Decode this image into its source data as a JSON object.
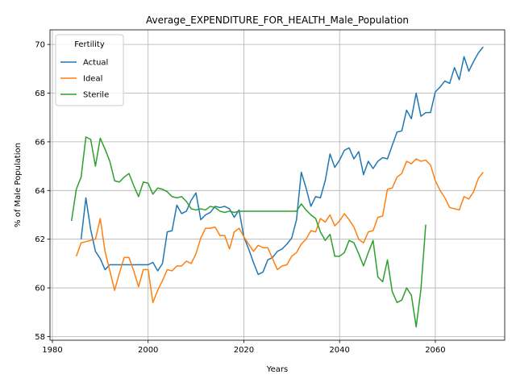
{
  "chart_data": {
    "type": "line",
    "title": "Average_EXPENDITURE_FOR_HEALTH_Male_Population",
    "xlabel": "Years",
    "ylabel": "% of Male Population",
    "xlim": [
      1979.5,
      2074.5
    ],
    "ylim": [
      57.85,
      70.6
    ],
    "xticks": [
      1980,
      2000,
      2020,
      2040,
      2060
    ],
    "yticks": [
      58,
      60,
      62,
      64,
      66,
      68,
      70
    ],
    "grid": true,
    "legend": {
      "title": "Fertility",
      "position": "top-left"
    },
    "colors": {
      "Actual": "#1f77b4",
      "Ideal": "#ff7f0e",
      "Sterile": "#2ca02c"
    },
    "series": [
      {
        "name": "Actual",
        "x": [
          1986,
          1987,
          1988,
          1989,
          1990,
          1991,
          1992,
          1993,
          1994,
          1995,
          1996,
          1997,
          1998,
          1999,
          2000,
          2001,
          2002,
          2003,
          2004,
          2005,
          2006,
          2007,
          2008,
          2009,
          2010,
          2011,
          2012,
          2013,
          2014,
          2015,
          2016,
          2017,
          2018,
          2019,
          2020,
          2021,
          2022,
          2023,
          2024,
          2025,
          2026,
          2027,
          2028,
          2029,
          2030,
          2031,
          2032,
          2033,
          2034,
          2035,
          2036,
          2037,
          2038,
          2039,
          2040,
          2041,
          2042,
          2043,
          2044,
          2045,
          2046,
          2047,
          2048,
          2049,
          2050,
          2051,
          2052,
          2053,
          2054,
          2055,
          2056,
          2057,
          2058,
          2059,
          2060,
          2061,
          2062,
          2063,
          2064,
          2065,
          2066,
          2067,
          2068,
          2069,
          2070
        ],
        "values": [
          62.0,
          63.7,
          62.4,
          61.5,
          61.2,
          60.75,
          60.95,
          60.95,
          60.95,
          60.95,
          60.95,
          60.95,
          60.95,
          60.95,
          60.95,
          61.05,
          60.7,
          61.0,
          62.3,
          62.35,
          63.4,
          63.05,
          63.15,
          63.6,
          63.9,
          62.8,
          63.0,
          63.1,
          63.35,
          63.3,
          63.35,
          63.25,
          62.9,
          63.2,
          62.1,
          61.6,
          61.05,
          60.55,
          60.65,
          61.15,
          61.25,
          61.5,
          61.6,
          61.8,
          62.05,
          62.8,
          64.75,
          64.1,
          63.35,
          63.75,
          63.7,
          64.4,
          65.5,
          64.95,
          65.25,
          65.65,
          65.75,
          65.3,
          65.6,
          64.65,
          65.2,
          64.9,
          65.2,
          65.35,
          65.3,
          65.85,
          66.4,
          66.45,
          67.3,
          66.95,
          68.0,
          67.05,
          67.2,
          67.2,
          68.05,
          68.25,
          68.5,
          68.4,
          69.05,
          68.55,
          69.5,
          68.9,
          69.3,
          69.65,
          69.9
        ]
      },
      {
        "name": "Ideal",
        "x": [
          1985,
          1986,
          1987,
          1988,
          1989,
          1990,
          1991,
          1992,
          1993,
          1994,
          1995,
          1996,
          1997,
          1998,
          1999,
          2000,
          2001,
          2002,
          2003,
          2004,
          2005,
          2006,
          2007,
          2008,
          2009,
          2010,
          2011,
          2012,
          2013,
          2014,
          2015,
          2016,
          2017,
          2018,
          2019,
          2020,
          2021,
          2022,
          2023,
          2024,
          2025,
          2026,
          2027,
          2028,
          2029,
          2030,
          2031,
          2032,
          2033,
          2034,
          2035,
          2036,
          2037,
          2038,
          2039,
          2040,
          2041,
          2042,
          2043,
          2044,
          2045,
          2046,
          2047,
          2048,
          2049,
          2050,
          2051,
          2052,
          2053,
          2054,
          2055,
          2056,
          2057,
          2058,
          2059,
          2060,
          2061,
          2062,
          2063,
          2064,
          2065,
          2066,
          2067,
          2068,
          2069,
          2070
        ],
        "values": [
          61.3,
          61.85,
          61.9,
          61.95,
          62.0,
          62.85,
          61.5,
          60.7,
          59.9,
          60.6,
          61.25,
          61.25,
          60.7,
          60.05,
          60.75,
          60.75,
          59.4,
          59.9,
          60.3,
          60.75,
          60.7,
          60.9,
          60.9,
          61.1,
          61.0,
          61.4,
          62.05,
          62.45,
          62.45,
          62.5,
          62.15,
          62.15,
          61.6,
          62.3,
          62.45,
          62.1,
          61.8,
          61.5,
          61.75,
          61.65,
          61.65,
          61.2,
          60.75,
          60.9,
          60.95,
          61.3,
          61.45,
          61.8,
          62.0,
          62.35,
          62.3,
          62.85,
          62.7,
          63.0,
          62.55,
          62.75,
          63.05,
          62.8,
          62.5,
          62.0,
          61.85,
          62.3,
          62.35,
          62.9,
          62.95,
          64.05,
          64.1,
          64.55,
          64.7,
          65.2,
          65.1,
          65.3,
          65.2,
          65.25,
          65.05,
          64.4,
          64.0,
          63.7,
          63.3,
          63.25,
          63.2,
          63.75,
          63.65,
          63.95,
          64.5,
          64.75
        ]
      },
      {
        "name": "Sterile",
        "x": [
          1984,
          1985,
          1986,
          1987,
          1988,
          1989,
          1990,
          1991,
          1992,
          1993,
          1994,
          1995,
          1996,
          1997,
          1998,
          1999,
          2000,
          2001,
          2002,
          2003,
          2004,
          2005,
          2006,
          2007,
          2008,
          2009,
          2010,
          2011,
          2012,
          2013,
          2014,
          2015,
          2016,
          2017,
          2018,
          2019,
          2020,
          2021,
          2022,
          2023,
          2024,
          2025,
          2026,
          2027,
          2028,
          2029,
          2030,
          2031,
          2032,
          2033,
          2034,
          2035,
          2036,
          2037,
          2038,
          2039,
          2040,
          2041,
          2042,
          2043,
          2044,
          2045,
          2046,
          2047,
          2048,
          2049,
          2050,
          2051,
          2052,
          2053,
          2054,
          2055,
          2056,
          2057,
          2058
        ],
        "values": [
          62.75,
          64.05,
          64.55,
          66.2,
          66.1,
          65.0,
          66.15,
          65.7,
          65.2,
          64.4,
          64.35,
          64.55,
          64.7,
          64.2,
          63.75,
          64.35,
          64.3,
          63.85,
          64.1,
          64.05,
          63.95,
          63.75,
          63.7,
          63.75,
          63.55,
          63.25,
          63.2,
          63.25,
          63.2,
          63.35,
          63.3,
          63.15,
          63.1,
          63.15,
          63.1,
          63.15,
          63.15,
          63.15,
          63.15,
          63.15,
          63.15,
          63.15,
          63.15,
          63.15,
          63.15,
          63.15,
          63.15,
          63.15,
          63.45,
          63.2,
          63.0,
          62.85,
          62.3,
          61.95,
          62.2,
          61.3,
          61.3,
          61.45,
          61.95,
          61.85,
          61.4,
          60.9,
          61.45,
          61.95,
          60.45,
          60.25,
          61.15,
          59.85,
          59.4,
          59.5,
          60.0,
          59.7,
          58.4,
          59.95,
          62.6
        ]
      }
    ]
  }
}
